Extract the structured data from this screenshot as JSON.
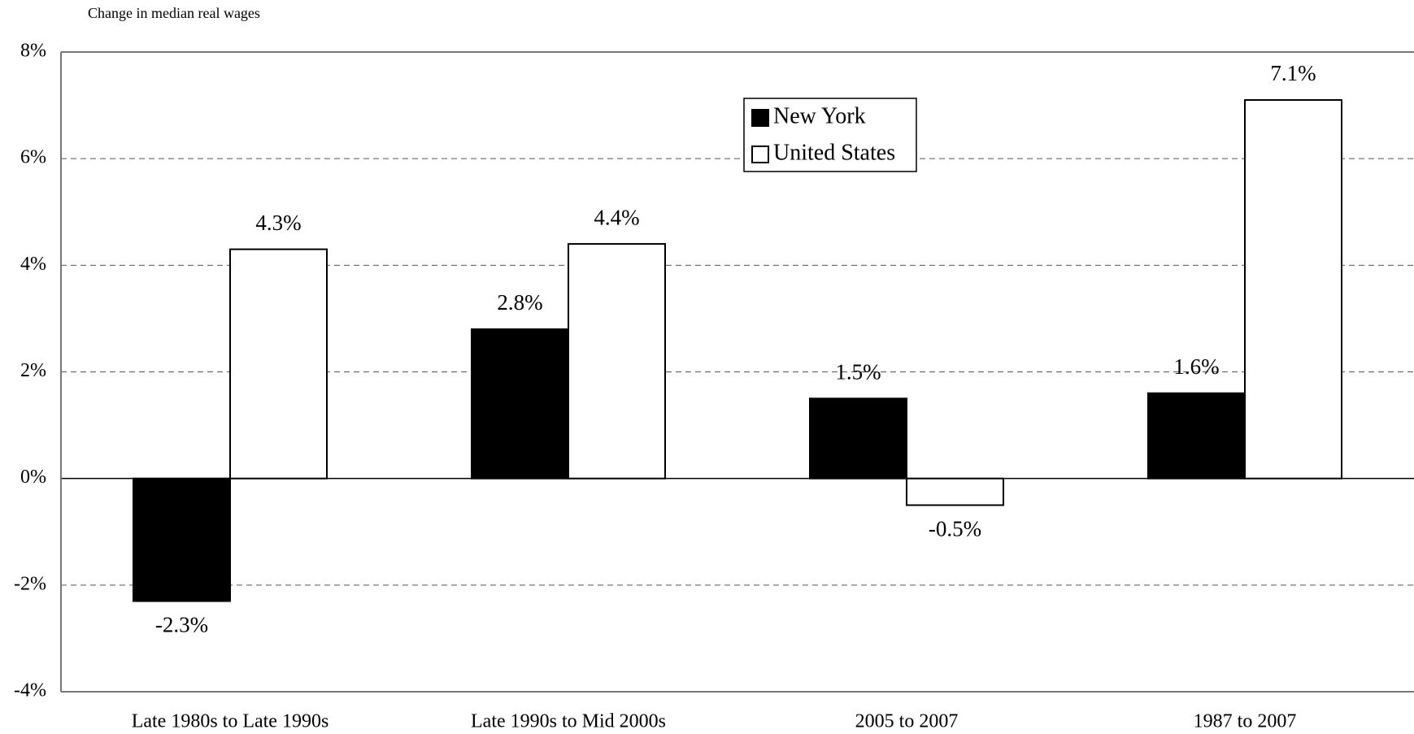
{
  "chart_data": {
    "type": "bar",
    "title": "Change in median real wages",
    "categories": [
      "Late 1980s to Late 1990s",
      "Late 1990s to Mid 2000s",
      "2005 to 2007",
      "1987 to 2007"
    ],
    "series": [
      {
        "name": "New York",
        "color": "#000000",
        "values": [
          -2.3,
          2.8,
          1.5,
          1.6
        ],
        "value_labels": [
          "-2.3%",
          "2.8%",
          "1.5%",
          "1.6%"
        ]
      },
      {
        "name": "United States",
        "color": "#ffffff",
        "values": [
          4.3,
          4.4,
          -0.5,
          7.1
        ],
        "value_labels": [
          "4.3%",
          "4.4%",
          "-0.5%",
          "7.1%"
        ]
      }
    ],
    "ylim": [
      -4,
      8
    ],
    "yticks": [
      {
        "value": -4,
        "label": "-4%"
      },
      {
        "value": -2,
        "label": "-2%"
      },
      {
        "value": 0,
        "label": "0%"
      },
      {
        "value": 2,
        "label": "2%"
      },
      {
        "value": 4,
        "label": "4%"
      },
      {
        "value": 6,
        "label": "6%"
      },
      {
        "value": 8,
        "label": "8%"
      }
    ],
    "grid": true
  }
}
